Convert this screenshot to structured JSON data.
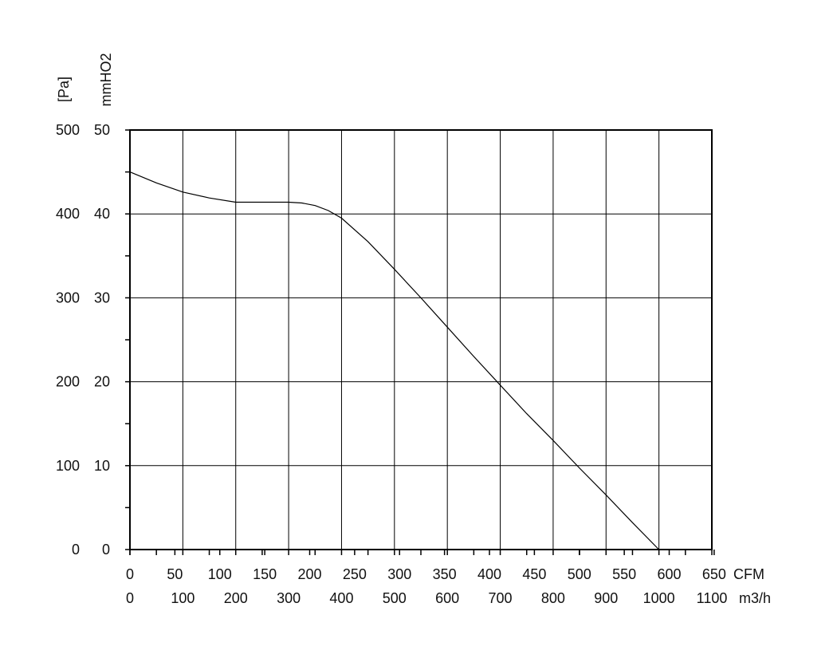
{
  "chart_data": {
    "type": "line",
    "title": "",
    "y_label_left": "[Pa]",
    "y_label_right": "mmHO2",
    "x_label_top": "CFM",
    "x_label_bottom": "m3/h",
    "y_ticks_pa": [
      "500",
      "400",
      "300",
      "200",
      "100",
      "0"
    ],
    "y_ticks_mmh2o": [
      "50",
      "40",
      "30",
      "20",
      "10",
      "0"
    ],
    "x_ticks_cfm": [
      "0",
      "50",
      "100",
      "150",
      "200",
      "250",
      "300",
      "350",
      "400",
      "450",
      "500",
      "550",
      "600",
      "650"
    ],
    "x_ticks_m3h": [
      "0",
      "100",
      "200",
      "300",
      "400",
      "500",
      "600",
      "700",
      "800",
      "900",
      "1000",
      "1100"
    ],
    "xlim_m3h": [
      0,
      1100
    ],
    "ylim_pa": [
      0,
      500
    ],
    "grid": true,
    "series": [
      {
        "x": [
          0,
          50,
          100,
          150,
          200,
          250,
          300,
          325,
          350,
          375,
          400,
          450,
          500,
          550,
          600,
          650,
          700,
          750,
          800,
          850,
          900,
          950,
          1000
        ],
        "y": [
          450,
          437,
          426,
          419,
          414,
          414,
          414,
          413,
          410,
          404,
          395,
          367,
          334,
          300,
          265,
          230,
          196,
          162,
          130,
          97,
          65,
          32,
          0
        ]
      }
    ]
  }
}
